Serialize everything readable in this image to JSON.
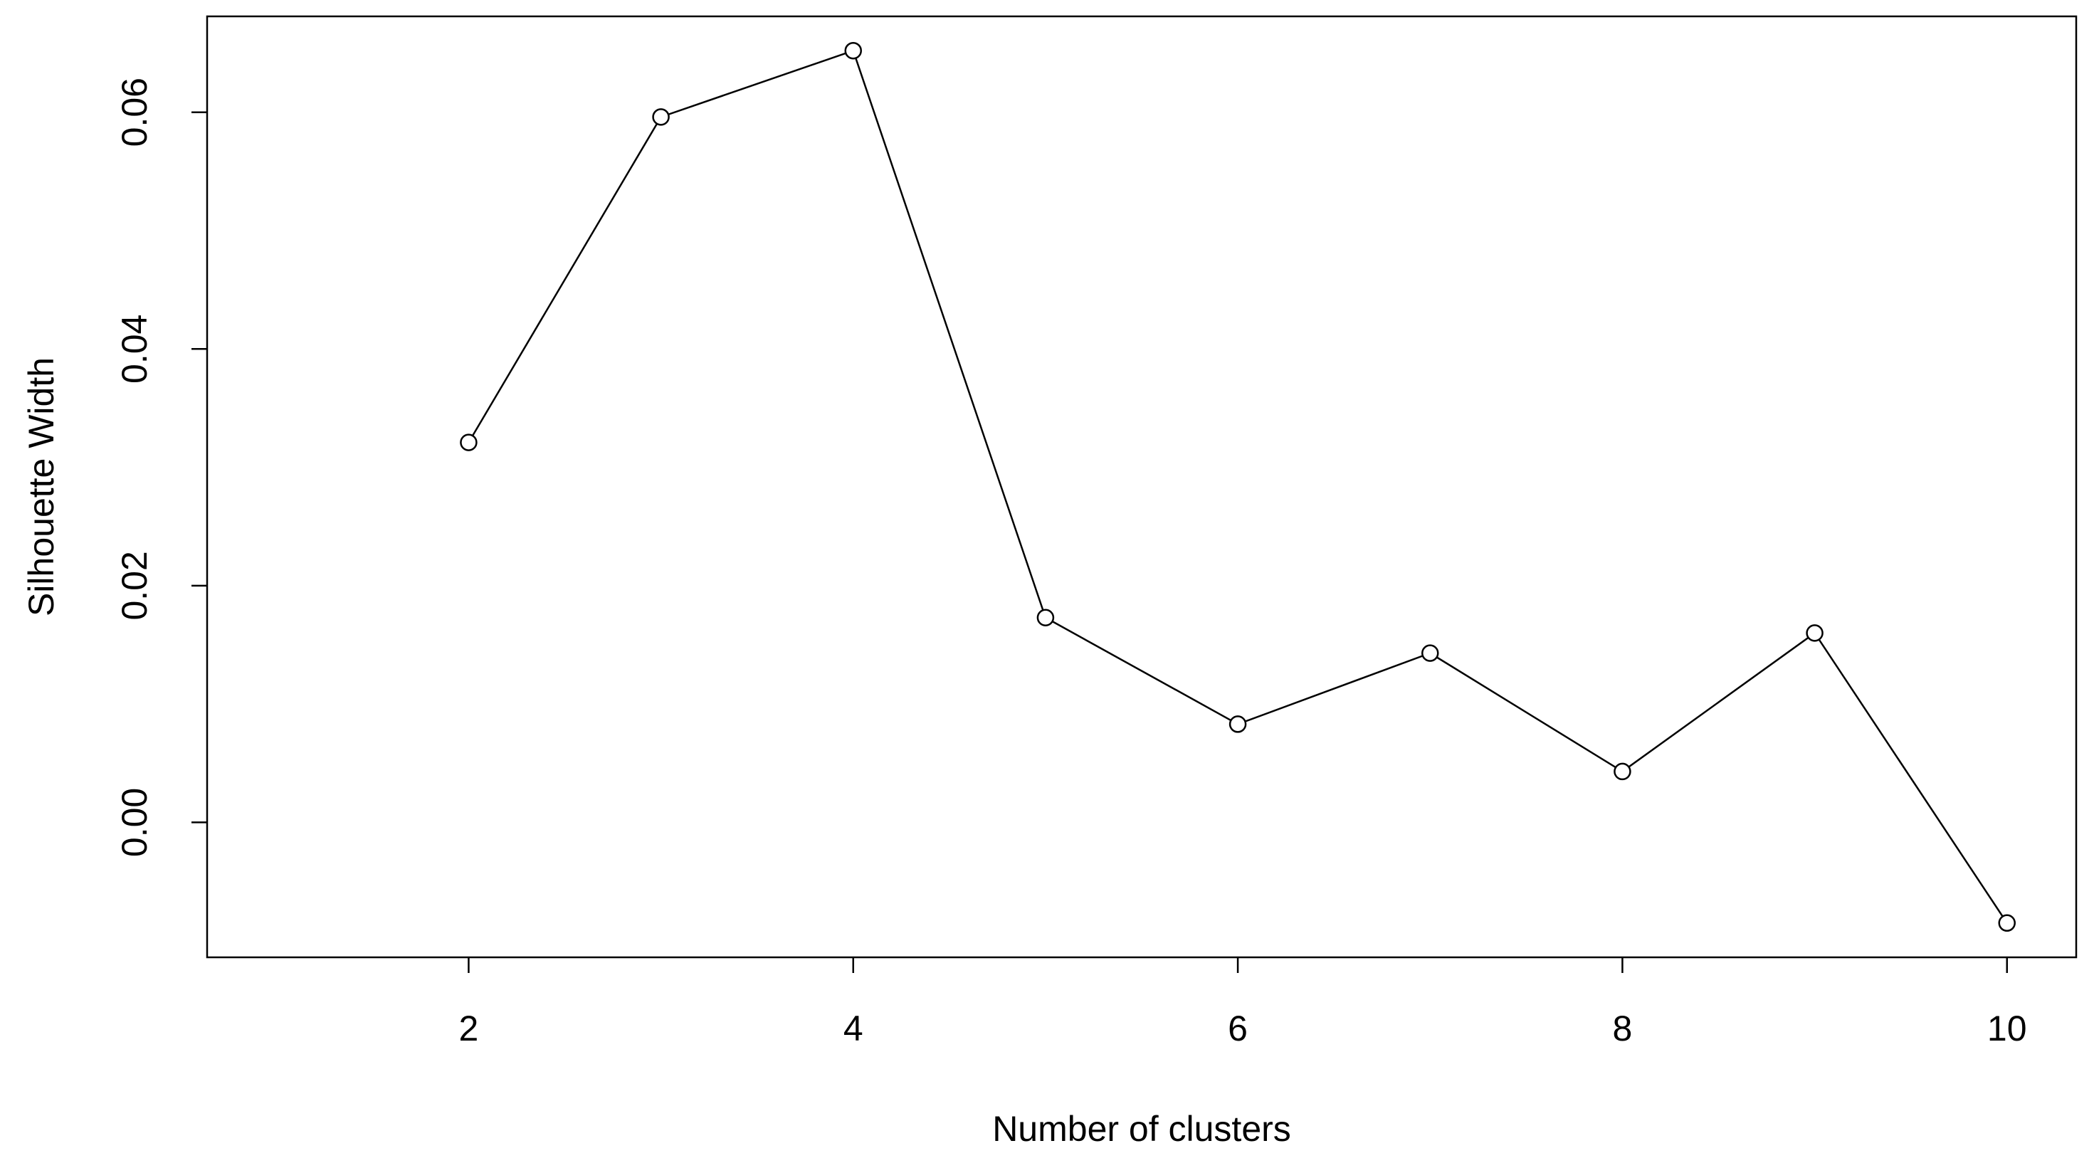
{
  "chart_data": {
    "type": "line",
    "x_label": "Number of clusters",
    "y_label": "Silhouette Width",
    "x": [
      2,
      3,
      4,
      5,
      6,
      7,
      8,
      9,
      10
    ],
    "values": [
      0.0321,
      0.0596,
      0.0652,
      0.0173,
      0.0083,
      0.0143,
      0.0043,
      0.016,
      -0.0085
    ],
    "color": "#000000",
    "xlim": [
      0.64,
      10.36
    ],
    "ylim": [
      -0.0114,
      0.0681
    ],
    "xticks": [
      2,
      4,
      6,
      8,
      10
    ],
    "yticks": [
      {
        "value": 0,
        "label": "0.00"
      },
      {
        "value": 0.02,
        "label": "0.02"
      },
      {
        "value": 0.04,
        "label": "0.04"
      },
      {
        "value": 0.06,
        "label": "0.06"
      }
    ],
    "grid": false
  }
}
